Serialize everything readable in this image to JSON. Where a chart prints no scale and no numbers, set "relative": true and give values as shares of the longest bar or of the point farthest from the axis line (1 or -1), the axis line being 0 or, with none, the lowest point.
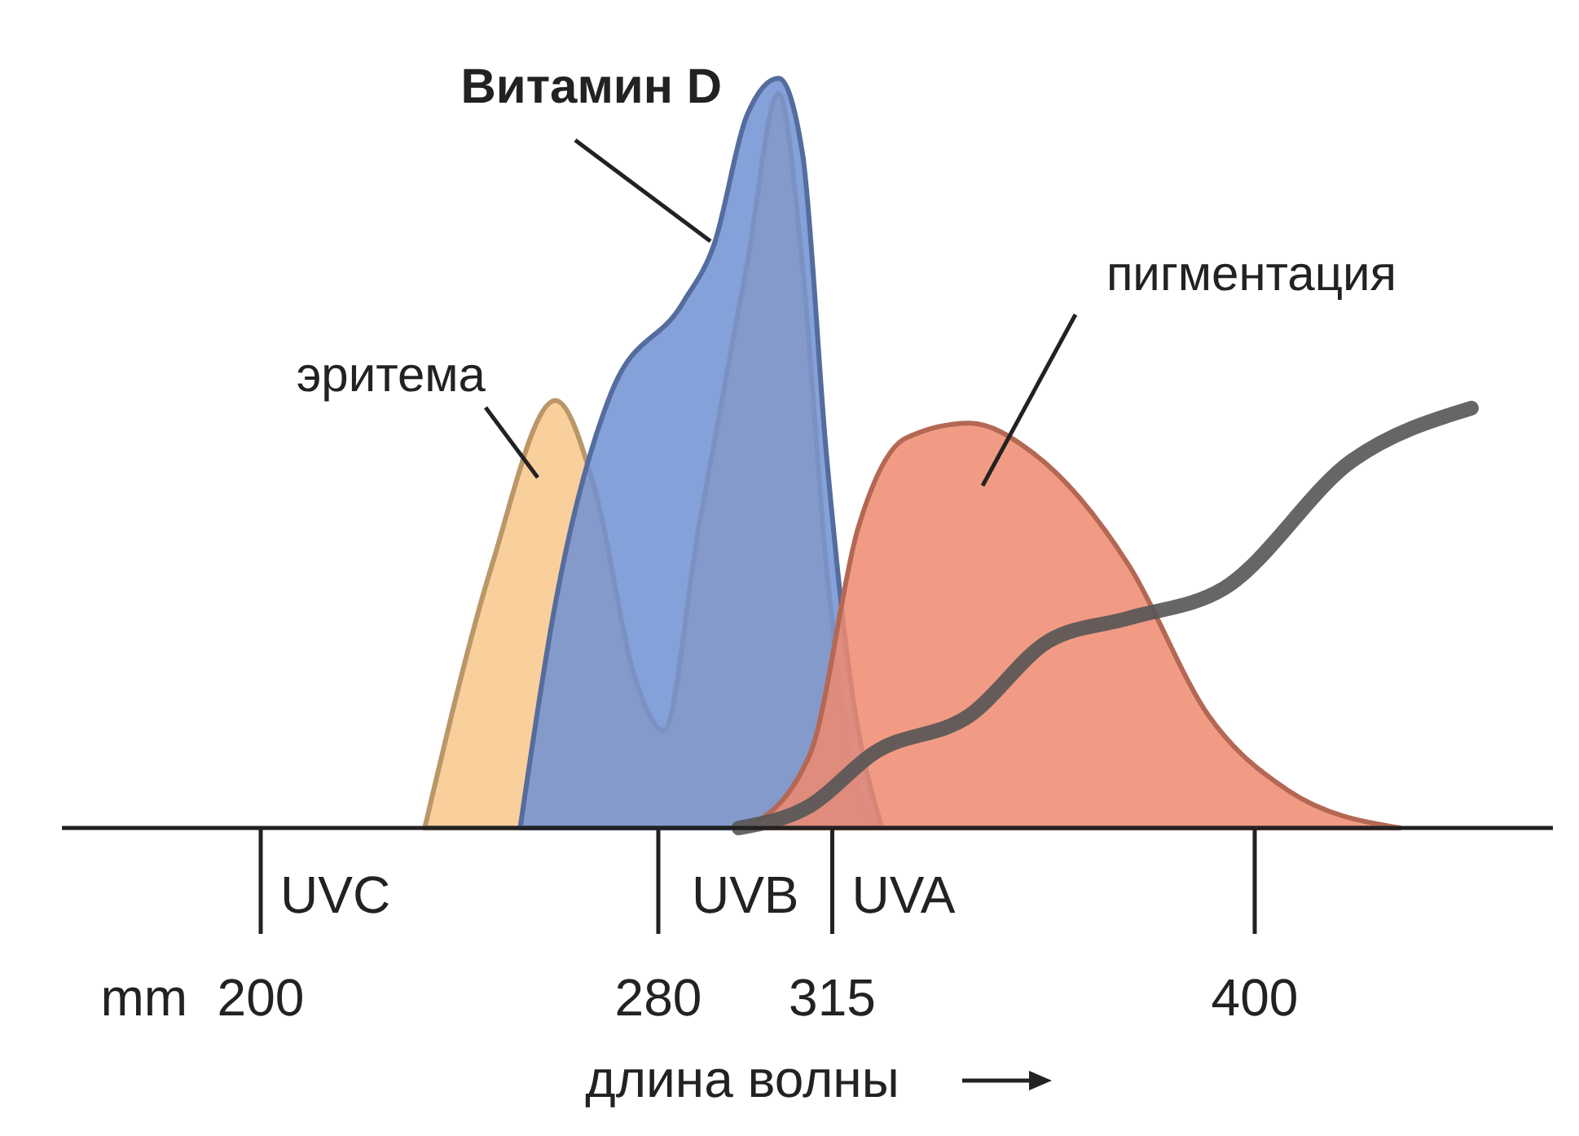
{
  "chart_data": {
    "type": "area",
    "relative": true,
    "xlabel": "длина волны",
    "xlim": [
      160,
      460
    ],
    "xticks": [
      200,
      280,
      315,
      400
    ],
    "series": [
      {
        "name": "эритема",
        "color": "#f8c78a",
        "x": [
          233.0,
          246.5,
          259.3,
          267.3,
          275.3,
          281.1,
          288.1,
          297.8,
          304.2,
          309.0,
          313.8,
          320.2,
          325.0
        ],
        "values": [
          0,
          0.35,
          0.57,
          0.45,
          0.2,
          0.13,
          0.4,
          0.75,
          0.98,
          0.75,
          0.35,
          0.05,
          0
        ]
      },
      {
        "name": "Витамин D",
        "color": "#7090d2",
        "x": [
          252.2,
          259.3,
          270.5,
          284.9,
          291.3,
          297.8,
          304.2,
          309.0,
          313.8,
          318.6,
          325.0
        ],
        "values": [
          0,
          0.3,
          0.58,
          0.7,
          0.78,
          0.95,
          1.0,
          0.9,
          0.5,
          0.2,
          0
        ]
      },
      {
        "name": "пигментация",
        "color": "#ef8a70",
        "x": [
          297.8,
          310.6,
          320.2,
          329.8,
          342.6,
          355.4,
          374.7,
          390.7,
          406.7,
          429.2
        ],
        "values": [
          0,
          0.1,
          0.4,
          0.52,
          0.54,
          0.5,
          0.35,
          0.15,
          0.05,
          0
        ]
      },
      {
        "type": "line",
        "color": "#555555",
        "x": [
          296.2,
          310.6,
          323.4,
          342.6,
          358.7,
          374.7,
          393.9,
          419.6,
          443.6
        ],
        "values": [
          0,
          0.03,
          0.1,
          0.15,
          0.25,
          0.28,
          0.32,
          0.49,
          0.56
        ]
      }
    ],
    "annotations": [
      "mm",
      "UVC",
      "UVB",
      "UVA"
    ]
  }
}
